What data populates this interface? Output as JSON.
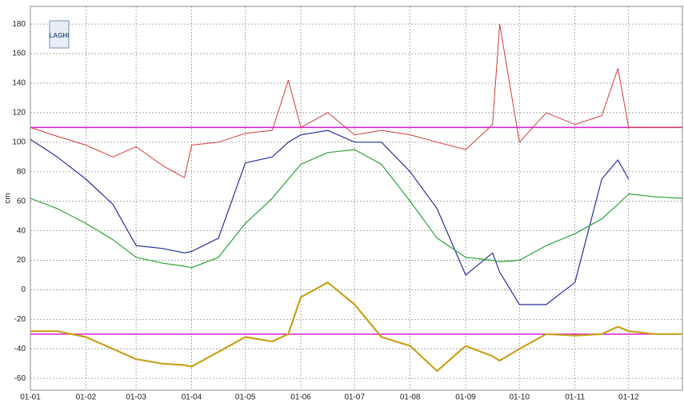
{
  "chart_data": {
    "type": "line",
    "y_label": "cm",
    "logo": "LAGHI",
    "x": [
      "01-01",
      "16-01",
      "01-02",
      "16-02",
      "01-03",
      "16-03",
      "28-03",
      "01-04",
      "16-04",
      "01-05",
      "16-05",
      "25-05",
      "01-06",
      "16-06",
      "01-07",
      "16-07",
      "01-08",
      "16-08",
      "01-09",
      "16-09",
      "20-09",
      "01-10",
      "16-10",
      "01-11",
      "16-11",
      "25-11",
      "01-12",
      "16-12",
      "31-12"
    ],
    "xlim": [
      "01-01",
      "31-12"
    ],
    "xticks": [
      "01-01",
      "01-02",
      "01-03",
      "01-04",
      "01-05",
      "01-06",
      "01-07",
      "01-08",
      "01-09",
      "01-10",
      "01-11",
      "01-12"
    ],
    "ylim": [
      -68,
      192
    ],
    "yticks": [
      -60,
      -40,
      -20,
      0,
      20,
      40,
      60,
      80,
      100,
      120,
      140,
      160,
      180
    ],
    "grid": true,
    "reference_lines": {
      "values": [
        110,
        -30
      ],
      "color": "#d61fd6"
    },
    "series": [
      {
        "color": "#d23b3b",
        "width": 1,
        "values": [
          110,
          104,
          98,
          90,
          97,
          84,
          76,
          98,
          100,
          106,
          108,
          142,
          110,
          120,
          105,
          108,
          105,
          100,
          95,
          112,
          180,
          100,
          120,
          112,
          118,
          150,
          110,
          110,
          110
        ]
      },
      {
        "color": "#2b2fa0",
        "width": 1.2,
        "values": [
          102,
          90,
          75,
          58,
          30,
          28,
          25,
          26,
          35,
          86,
          90,
          100,
          105,
          108,
          100,
          100,
          80,
          55,
          10,
          25,
          12,
          -10,
          -10,
          5,
          75,
          88,
          75,
          null,
          null
        ]
      },
      {
        "color": "#2aa33a",
        "width": 1.2,
        "values": [
          62,
          55,
          45,
          34,
          22,
          18,
          16,
          15,
          22,
          45,
          62,
          75,
          85,
          93,
          95,
          85,
          60,
          35,
          22,
          20,
          19,
          20,
          30,
          38,
          48,
          58,
          65,
          63,
          62
        ]
      },
      {
        "color": "#c9a21a",
        "width": 2.2,
        "values": [
          -28,
          -28,
          -32,
          -40,
          -47,
          -50,
          -51,
          -52,
          -42,
          -32,
          -35,
          -30,
          -5,
          5,
          -10,
          -32,
          -38,
          -55,
          -38,
          -45,
          -48,
          -40,
          -30,
          -31,
          -30,
          -25,
          -28,
          -30,
          -30
        ]
      }
    ]
  }
}
